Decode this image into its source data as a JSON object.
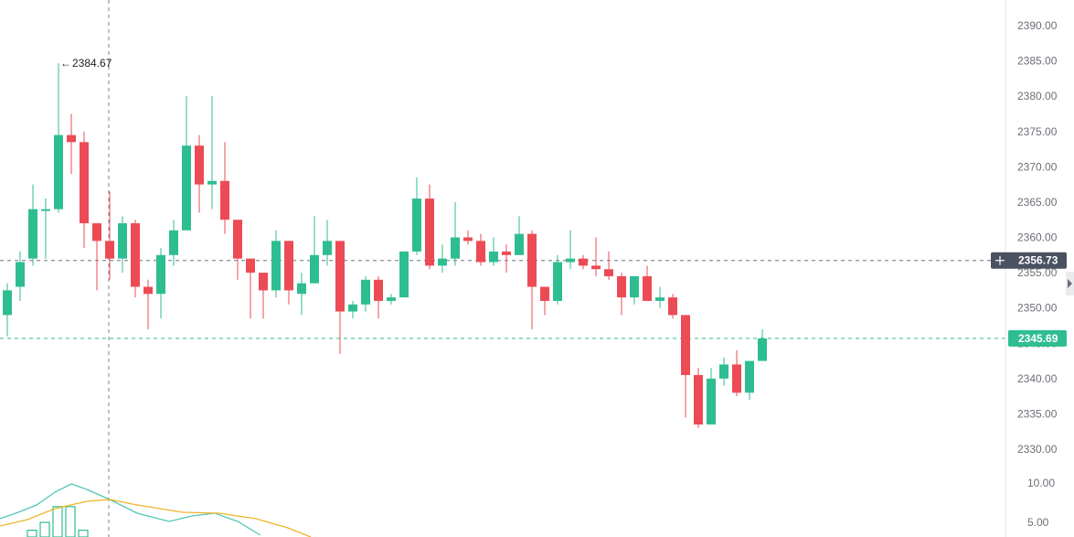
{
  "chart_data": {
    "type": "candlestick",
    "y_axis": {
      "ylim": [
        2327,
        2393
      ],
      "ticks": [
        "2390.00",
        "2385.00",
        "2380.00",
        "2375.00",
        "2370.00",
        "2365.00",
        "2360.00",
        "2355.00",
        "2350.00",
        "2345.00",
        "2340.00",
        "2335.00",
        "2330.00"
      ]
    },
    "volume_axis": {
      "ylim": [
        3,
        12.4
      ],
      "ticks": [
        "10.00",
        "5.00"
      ]
    },
    "annotations": {
      "high_label": "2384.67",
      "crosshair_price": "2356.73",
      "last_price": "2345.69"
    },
    "candles": [
      [
        2349.0,
        2352.5,
        2346.0,
        2353.5
      ],
      [
        2353.0,
        2356.5,
        2351.0,
        2358.0
      ],
      [
        2357.0,
        2364.0,
        2356.0,
        2367.5
      ],
      [
        2364.0,
        2364.0,
        2357.0,
        2365.5
      ],
      [
        2364.0,
        2374.5,
        2363.5,
        2384.67
      ],
      [
        2374.5,
        2373.5,
        2369.0,
        2377.5
      ],
      [
        2373.5,
        2362.0,
        2358.5,
        2375.0
      ],
      [
        2362.0,
        2359.5,
        2352.5,
        2362.0
      ],
      [
        2359.5,
        2357.0,
        2354.0,
        2366.5
      ],
      [
        2357.0,
        2362.0,
        2355.0,
        2363.0
      ],
      [
        2362.0,
        2353.0,
        2351.5,
        2362.5
      ],
      [
        2353.0,
        2352.0,
        2347.0,
        2354.0
      ],
      [
        2352.0,
        2357.5,
        2348.5,
        2358.5
      ],
      [
        2357.5,
        2361.0,
        2356.0,
        2362.5
      ],
      [
        2361.0,
        2373.0,
        2361.0,
        2380.0
      ],
      [
        2373.0,
        2367.5,
        2363.5,
        2374.5
      ],
      [
        2367.5,
        2368.0,
        2364.0,
        2380.0
      ],
      [
        2368.0,
        2362.5,
        2360.5,
        2373.5
      ],
      [
        2362.5,
        2357.0,
        2354.0,
        2362.5
      ],
      [
        2357.0,
        2355.0,
        2348.5,
        2357.0
      ],
      [
        2355.0,
        2352.5,
        2348.5,
        2355.0
      ],
      [
        2352.5,
        2359.5,
        2351.5,
        2361.0
      ],
      [
        2359.5,
        2352.5,
        2350.5,
        2359.5
      ],
      [
        2352.0,
        2353.5,
        2349.0,
        2355.0
      ],
      [
        2353.5,
        2357.5,
        2353.5,
        2363.0
      ],
      [
        2357.5,
        2359.5,
        2356.0,
        2362.5
      ],
      [
        2359.5,
        2349.5,
        2343.5,
        2359.5
      ],
      [
        2349.5,
        2350.5,
        2348.5,
        2351.0
      ],
      [
        2350.5,
        2354.0,
        2349.5,
        2354.5
      ],
      [
        2354.0,
        2351.0,
        2348.5,
        2354.5
      ],
      [
        2351.0,
        2351.5,
        2350.5,
        2352.0
      ],
      [
        2351.5,
        2358.0,
        2351.5,
        2358.0
      ],
      [
        2358.0,
        2365.5,
        2357.5,
        2368.5
      ],
      [
        2365.5,
        2356.0,
        2355.5,
        2367.5
      ],
      [
        2356.0,
        2357.0,
        2355.0,
        2359.0
      ],
      [
        2357.0,
        2360.0,
        2356.0,
        2365.0
      ],
      [
        2360.0,
        2359.5,
        2359.0,
        2361.0
      ],
      [
        2359.5,
        2356.5,
        2356.0,
        2360.5
      ],
      [
        2356.5,
        2358.0,
        2356.0,
        2360.0
      ],
      [
        2358.0,
        2357.5,
        2355.0,
        2359.0
      ],
      [
        2357.5,
        2360.5,
        2357.5,
        2363.0
      ],
      [
        2360.5,
        2353.0,
        2347.0,
        2361.0
      ],
      [
        2353.0,
        2351.0,
        2349.0,
        2353.0
      ],
      [
        2351.0,
        2356.5,
        2350.5,
        2357.5
      ],
      [
        2356.5,
        2357.0,
        2355.5,
        2361.0
      ],
      [
        2357.0,
        2356.0,
        2355.5,
        2357.5
      ],
      [
        2356.0,
        2355.5,
        2354.5,
        2360.0
      ],
      [
        2355.5,
        2354.5,
        2354.0,
        2358.0
      ],
      [
        2354.5,
        2351.5,
        2349.0,
        2355.0
      ],
      [
        2351.5,
        2354.5,
        2350.5,
        2354.5
      ],
      [
        2354.5,
        2351.0,
        2351.0,
        2356.0
      ],
      [
        2351.0,
        2351.5,
        2350.0,
        2353.0
      ],
      [
        2351.5,
        2349.0,
        2348.5,
        2352.0
      ],
      [
        2349.0,
        2340.5,
        2334.5,
        2349.0
      ],
      [
        2340.5,
        2333.5,
        2333.0,
        2341.5
      ],
      [
        2333.5,
        2340.0,
        2333.5,
        2341.5
      ],
      [
        2340.0,
        2342.0,
        2339.0,
        2343.0
      ],
      [
        2342.0,
        2338.0,
        2337.5,
        2344.0
      ],
      [
        2338.0,
        2342.5,
        2337.0,
        2342.5
      ],
      [
        2342.5,
        2345.69,
        2342.5,
        2347.0
      ]
    ],
    "volume": [
      {
        "x": 30,
        "h": 1
      },
      {
        "x": 44,
        "h": 2
      },
      {
        "x": 58,
        "h": 4
      },
      {
        "x": 72,
        "h": 4
      },
      {
        "x": 86,
        "h": 1
      }
    ]
  }
}
